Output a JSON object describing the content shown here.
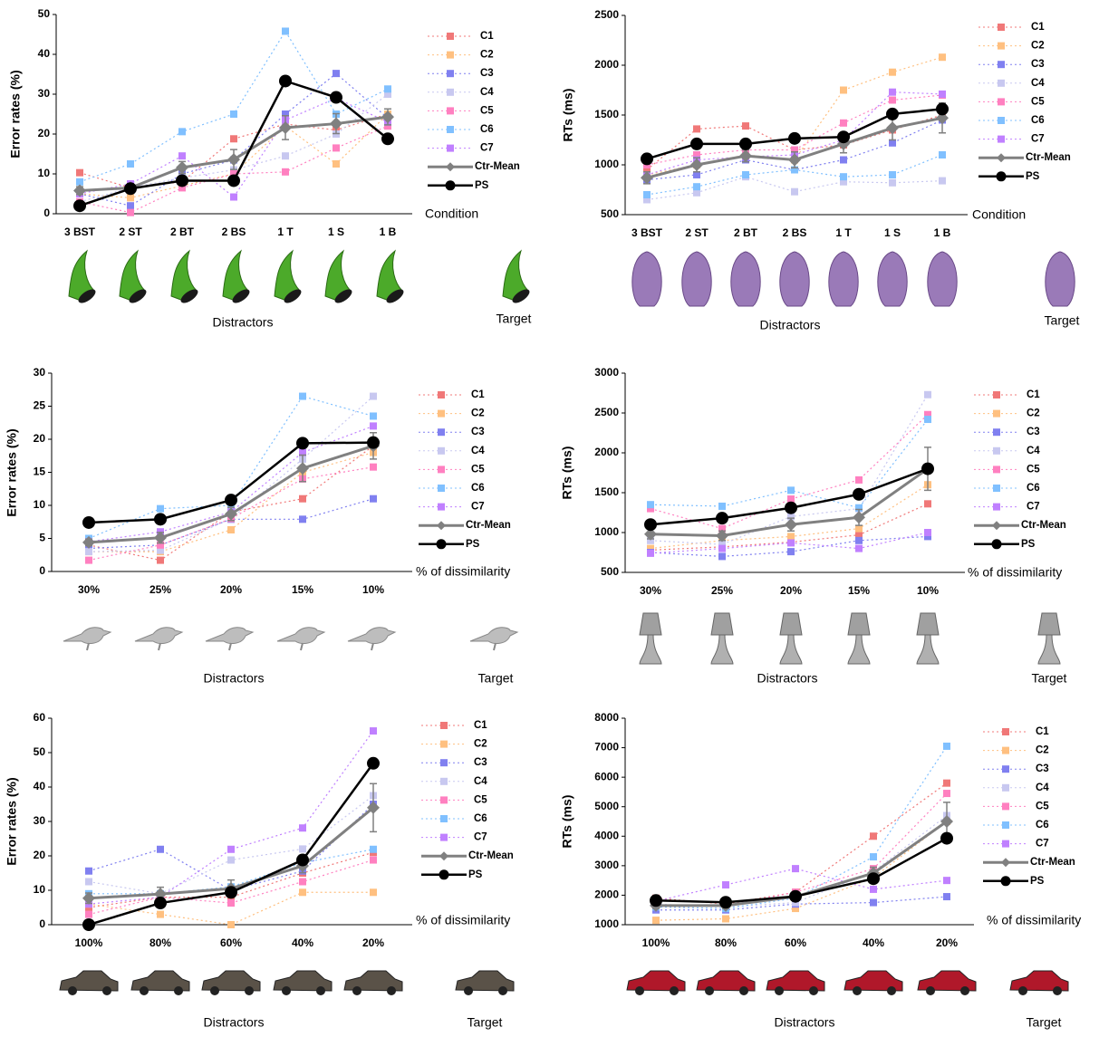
{
  "chart_data": [
    {
      "type": "line",
      "y_label": "Error rates (%)",
      "x_label": "Condition",
      "distractors_label": "Distractors",
      "target_label": "Target",
      "categories": [
        "3 BST",
        "2 ST",
        "2 BT",
        "2 BS",
        "1 T",
        "1 S",
        "1 B"
      ],
      "ylim": [
        0,
        50
      ],
      "yticks": [
        0,
        10,
        20,
        30,
        40,
        50
      ],
      "series": [
        {
          "name": "C1",
          "color": "#f07878",
          "values": [
            10.3,
            6.5,
            8,
            18.8,
            22.5,
            21,
            25
          ]
        },
        {
          "name": "C2",
          "color": "#ffc080",
          "values": [
            5,
            4,
            7,
            10,
            22,
            12.5,
            25
          ]
        },
        {
          "name": "C3",
          "color": "#8080f0",
          "values": [
            5,
            2,
            10,
            13.5,
            25,
            35.2,
            24
          ]
        },
        {
          "name": "C4",
          "color": "#c8c8f0",
          "values": [
            3,
            6.5,
            9,
            11,
            14.5,
            20,
            30
          ]
        },
        {
          "name": "C5",
          "color": "#ff80c0",
          "values": [
            3,
            0.3,
            6.5,
            10,
            10.5,
            16.5,
            22
          ]
        },
        {
          "name": "C6",
          "color": "#80c0ff",
          "values": [
            8,
            12.5,
            20.6,
            25,
            45.8,
            25,
            31.3
          ]
        },
        {
          "name": "C7",
          "color": "#c080ff",
          "values": [
            5,
            7.5,
            14.5,
            4.2,
            23.5,
            29,
            23
          ]
        },
        {
          "name": "Ctr-Mean",
          "color": "#808080",
          "values": [
            5.8,
            6.5,
            11.6,
            13.6,
            21.6,
            22.6,
            24.3
          ],
          "errors": [
            1,
            1,
            1.5,
            2.5,
            3,
            2.5,
            2
          ]
        },
        {
          "name": "PS",
          "color": "#000000",
          "values": [
            2,
            6.3,
            8.3,
            8.3,
            33.3,
            29.2,
            18.8
          ]
        }
      ]
    },
    {
      "type": "line",
      "y_label": "RTs (ms)",
      "x_label": "Condition",
      "distractors_label": "Distractors",
      "target_label": "Target",
      "categories": [
        "3 BST",
        "2 ST",
        "2 BT",
        "2 BS",
        "1 T",
        "1 S",
        "1 B"
      ],
      "ylim": [
        500,
        2500
      ],
      "yticks": [
        500,
        1000,
        1500,
        2000,
        2500
      ],
      "series": [
        {
          "name": "C1",
          "color": "#f07878",
          "values": [
            950,
            1360,
            1390,
            1150,
            1200,
            1350,
            1500
          ]
        },
        {
          "name": "C2",
          "color": "#ffc080",
          "values": [
            900,
            1000,
            1100,
            1050,
            1750,
            1930,
            2080
          ]
        },
        {
          "name": "C3",
          "color": "#8080f0",
          "values": [
            850,
            900,
            1050,
            950,
            1050,
            1220,
            1450
          ]
        },
        {
          "name": "C4",
          "color": "#c8c8f0",
          "values": [
            650,
            720,
            880,
            730,
            830,
            820,
            840
          ]
        },
        {
          "name": "C5",
          "color": "#ff80c0",
          "values": [
            1000,
            1100,
            1150,
            1150,
            1420,
            1650,
            1700
          ]
        },
        {
          "name": "C6",
          "color": "#80c0ff",
          "values": [
            700,
            780,
            900,
            950,
            880,
            900,
            1100
          ]
        },
        {
          "name": "C7",
          "color": "#c080ff",
          "values": [
            900,
            1050,
            1080,
            1100,
            1250,
            1730,
            1710
          ]
        },
        {
          "name": "Ctr-Mean",
          "color": "#808080",
          "values": [
            870,
            1000,
            1090,
            1050,
            1210,
            1370,
            1470
          ],
          "errors": [
            60,
            70,
            60,
            80,
            90,
            120,
            150
          ]
        },
        {
          "name": "PS",
          "color": "#000000",
          "values": [
            1060,
            1210,
            1210,
            1265,
            1280,
            1510,
            1560
          ]
        }
      ]
    },
    {
      "type": "line",
      "y_label": "Error rates (%)",
      "x_label": "% of dissimilarity",
      "distractors_label": "Distractors",
      "target_label": "Target",
      "categories": [
        "30%",
        "25%",
        "20%",
        "15%",
        "10%"
      ],
      "ylim": [
        0,
        30
      ],
      "yticks": [
        0,
        5,
        10,
        15,
        20,
        25,
        30
      ],
      "series": [
        {
          "name": "C1",
          "color": "#f07878",
          "values": [
            4,
            1.7,
            9,
            11,
            19
          ]
        },
        {
          "name": "C2",
          "color": "#ffc080",
          "values": [
            3,
            3,
            6.3,
            15,
            18
          ]
        },
        {
          "name": "C3",
          "color": "#8080f0",
          "values": [
            3.5,
            4,
            7.9,
            7.9,
            11
          ]
        },
        {
          "name": "C4",
          "color": "#c8c8f0",
          "values": [
            3,
            3.2,
            8,
            17,
            26.5
          ]
        },
        {
          "name": "C5",
          "color": "#ff80c0",
          "values": [
            1.7,
            4,
            8,
            14,
            15.8
          ]
        },
        {
          "name": "C6",
          "color": "#80c0ff",
          "values": [
            5,
            9.5,
            10,
            26.5,
            23.5
          ]
        },
        {
          "name": "C7",
          "color": "#c080ff",
          "values": [
            4.5,
            6,
            9,
            18,
            22
          ]
        },
        {
          "name": "Ctr-Mean",
          "color": "#808080",
          "values": [
            4.4,
            5.1,
            8.7,
            15.6,
            19
          ],
          "errors": [
            0.5,
            0.8,
            1,
            2,
            2
          ]
        },
        {
          "name": "PS",
          "color": "#000000",
          "values": [
            7.4,
            7.9,
            10.8,
            19.4,
            19.5
          ]
        }
      ]
    },
    {
      "type": "line",
      "y_label": "RTs (ms)",
      "x_label": "% of dissimilarity",
      "distractors_label": "Distractors",
      "target_label": "Target",
      "categories": [
        "30%",
        "25%",
        "20%",
        "15%",
        "10%"
      ],
      "ylim": [
        500,
        3000
      ],
      "yticks": [
        500,
        1000,
        1500,
        2000,
        2500,
        3000
      ],
      "series": [
        {
          "name": "C1",
          "color": "#f07878",
          "values": [
            780,
            820,
            880,
            970,
            1360
          ]
        },
        {
          "name": "C2",
          "color": "#ffc080",
          "values": [
            800,
            900,
            950,
            1050,
            1600
          ]
        },
        {
          "name": "C3",
          "color": "#8080f0",
          "values": [
            750,
            700,
            760,
            900,
            950
          ]
        },
        {
          "name": "C4",
          "color": "#c8c8f0",
          "values": [
            900,
            850,
            1200,
            1300,
            2730
          ]
        },
        {
          "name": "C5",
          "color": "#ff80c0",
          "values": [
            1300,
            1050,
            1420,
            1660,
            2480
          ]
        },
        {
          "name": "C6",
          "color": "#80c0ff",
          "values": [
            1350,
            1330,
            1530,
            1310,
            2420
          ]
        },
        {
          "name": "C7",
          "color": "#c080ff",
          "values": [
            740,
            800,
            870,
            800,
            1000
          ]
        },
        {
          "name": "Ctr-Mean",
          "color": "#808080",
          "values": [
            980,
            960,
            1100,
            1190,
            1800
          ],
          "errors": [
            60,
            60,
            80,
            100,
            270
          ]
        },
        {
          "name": "PS",
          "color": "#000000",
          "values": [
            1100,
            1180,
            1310,
            1480,
            1800
          ]
        }
      ]
    },
    {
      "type": "line",
      "y_label": "Error rates (%)",
      "x_label": "% of dissimilarity",
      "distractors_label": "Distractors",
      "target_label": "Target",
      "categories": [
        "100%",
        "80%",
        "60%",
        "40%",
        "20%"
      ],
      "ylim": [
        0,
        60
      ],
      "yticks": [
        0,
        10,
        20,
        30,
        40,
        50,
        60
      ],
      "series": [
        {
          "name": "C1",
          "color": "#f07878",
          "values": [
            5,
            8,
            8,
            15,
            21
          ]
        },
        {
          "name": "C2",
          "color": "#ffc080",
          "values": [
            6,
            3,
            0,
            9.4,
            9.4
          ]
        },
        {
          "name": "C3",
          "color": "#8080f0",
          "values": [
            15.6,
            21.9,
            10,
            15.6,
            35
          ]
        },
        {
          "name": "C4",
          "color": "#c8c8f0",
          "values": [
            12.5,
            9,
            18.8,
            22,
            37.5
          ]
        },
        {
          "name": "C5",
          "color": "#ff80c0",
          "values": [
            3,
            8,
            6.3,
            12.5,
            18.8
          ]
        },
        {
          "name": "C6",
          "color": "#80c0ff",
          "values": [
            9,
            9,
            11,
            18,
            21.9
          ]
        },
        {
          "name": "C7",
          "color": "#c080ff",
          "values": [
            6,
            8,
            21.9,
            28.1,
            56.3
          ]
        },
        {
          "name": "Ctr-Mean",
          "color": "#808080",
          "values": [
            7.7,
            8.9,
            10.5,
            17.1,
            34
          ],
          "errors": [
            1.5,
            2,
            2.5,
            2,
            7
          ]
        },
        {
          "name": "PS",
          "color": "#000000",
          "values": [
            0,
            6.3,
            9.4,
            18.8,
            46.9
          ]
        }
      ]
    },
    {
      "type": "line",
      "y_label": "RTs (ms)",
      "x_label": "% of dissimilarity",
      "distractors_label": "Distractors",
      "target_label": "Target",
      "categories": [
        "100%",
        "80%",
        "60%",
        "40%",
        "20%"
      ],
      "ylim": [
        1000,
        8000
      ],
      "yticks": [
        1000,
        2000,
        3000,
        4000,
        5000,
        6000,
        7000,
        8000
      ],
      "series": [
        {
          "name": "C1",
          "color": "#f07878",
          "values": [
            1900,
            1700,
            2100,
            4000,
            5800
          ]
        },
        {
          "name": "C2",
          "color": "#ffc080",
          "values": [
            1150,
            1200,
            1550,
            2600,
            4500
          ]
        },
        {
          "name": "C3",
          "color": "#8080f0",
          "values": [
            1500,
            1500,
            1700,
            1750,
            1950
          ]
        },
        {
          "name": "C4",
          "color": "#c8c8f0",
          "values": [
            1700,
            1600,
            1750,
            2800,
            4700
          ]
        },
        {
          "name": "C5",
          "color": "#ff80c0",
          "values": [
            1600,
            1650,
            2100,
            2900,
            5450
          ]
        },
        {
          "name": "C6",
          "color": "#80c0ff",
          "values": [
            1600,
            1550,
            1900,
            3300,
            7050
          ]
        },
        {
          "name": "C7",
          "color": "#c080ff",
          "values": [
            1800,
            2350,
            2900,
            2200,
            2500
          ]
        },
        {
          "name": "Ctr-Mean",
          "color": "#808080",
          "values": [
            1650,
            1650,
            1950,
            2750,
            4500
          ],
          "errors": [
            100,
            100,
            150,
            200,
            650
          ]
        },
        {
          "name": "PS",
          "color": "#000000",
          "values": [
            1820,
            1760,
            1960,
            2560,
            3930
          ]
        }
      ]
    }
  ]
}
